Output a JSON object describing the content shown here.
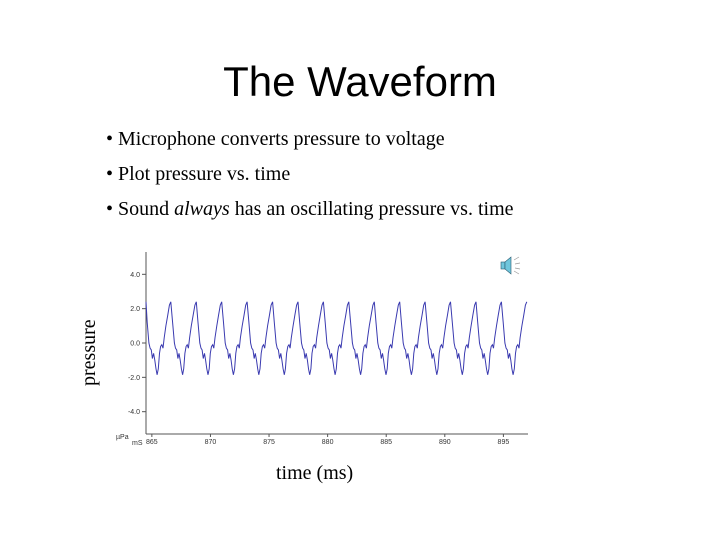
{
  "title": "The Waveform",
  "bullets": [
    {
      "prefix": "• Microphone converts pressure to voltage"
    },
    {
      "prefix": "• Plot pressure vs. time"
    },
    {
      "prefix": "• Sound ",
      "emph": "always",
      "suffix": " has an oscillating pressure vs. time"
    }
  ],
  "icons": {
    "speaker": "speaker-sound-icon"
  },
  "chart_data": {
    "type": "line",
    "xlabel": "time (ms)",
    "ylabel": "pressure",
    "x_unit": "mS",
    "y_unit": "µPa",
    "xlim": [
      864.5,
      897.1
    ],
    "ylim": [
      -5.3,
      5.3
    ],
    "x_ticks": [
      "865",
      "870",
      "875",
      "880",
      "885",
      "890",
      "895"
    ],
    "y_ticks": [
      "4.0",
      "2.0",
      "0.0",
      "-2.0",
      "-4.0"
    ],
    "grid": false,
    "line_color": "#3a3ab0",
    "first_peak_ms": 864.45,
    "period_ms": 2.17,
    "one_cycle": {
      "offset_ms": [
        0,
        0.15,
        0.3,
        0.4,
        0.5,
        0.6,
        0.7,
        0.8,
        0.9,
        1.0,
        1.1,
        1.2,
        1.3,
        1.4,
        1.5,
        1.6,
        1.75,
        1.9,
        2.05,
        2.17
      ],
      "pressure": [
        2.4,
        1.2,
        0.0,
        -0.3,
        -0.4,
        -0.9,
        -0.6,
        -1.0,
        -1.5,
        -1.85,
        -1.5,
        -0.6,
        -0.2,
        -0.1,
        -0.3,
        0.3,
        1.0,
        1.6,
        2.2,
        2.4
      ]
    }
  }
}
